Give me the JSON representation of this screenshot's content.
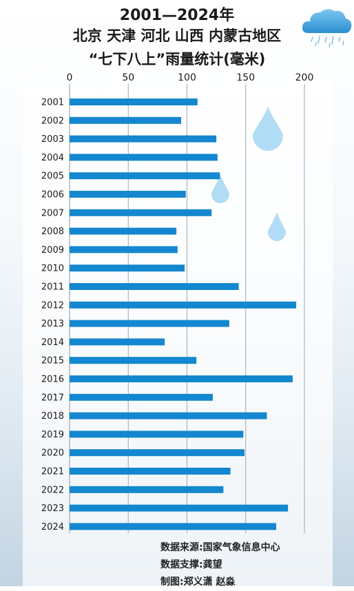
{
  "header": {
    "line1": "2001—2024年",
    "line2": "北京 天津 河北 山西 内蒙古地区",
    "line3": "“七下八上”雨量统计(毫米)"
  },
  "chart_data": {
    "type": "bar",
    "orientation": "horizontal",
    "title": "“七下八上”雨量统计(毫米)",
    "categories": [
      "2001",
      "2002",
      "2003",
      "2004",
      "2005",
      "2006",
      "2007",
      "2008",
      "2009",
      "2010",
      "2011",
      "2012",
      "2013",
      "2014",
      "2015",
      "2016",
      "2017",
      "2018",
      "2019",
      "2020",
      "2021",
      "2022",
      "2023",
      "2024"
    ],
    "values": [
      109,
      95,
      125,
      126,
      128,
      99,
      121,
      91,
      92,
      98,
      144,
      193,
      136,
      81,
      108,
      190,
      122,
      168,
      148,
      149,
      137,
      131,
      186,
      176
    ],
    "xlim": [
      0,
      200
    ],
    "xticks": [
      0,
      50,
      100,
      150,
      200
    ],
    "grid": true,
    "colors": {
      "bar": "#1387cf",
      "grid": "#9aa8b3"
    }
  },
  "credits": {
    "source": "数据来源:国家气象信息中心",
    "support": "数据支撑:龚望",
    "design": "制图:郑义潇 赵淼"
  },
  "decorations": {
    "icons": [
      "rain-cloud-icon",
      "raindrop-icon",
      "raindrop-icon",
      "raindrop-icon"
    ],
    "drop_color": "#a9d8f4"
  }
}
